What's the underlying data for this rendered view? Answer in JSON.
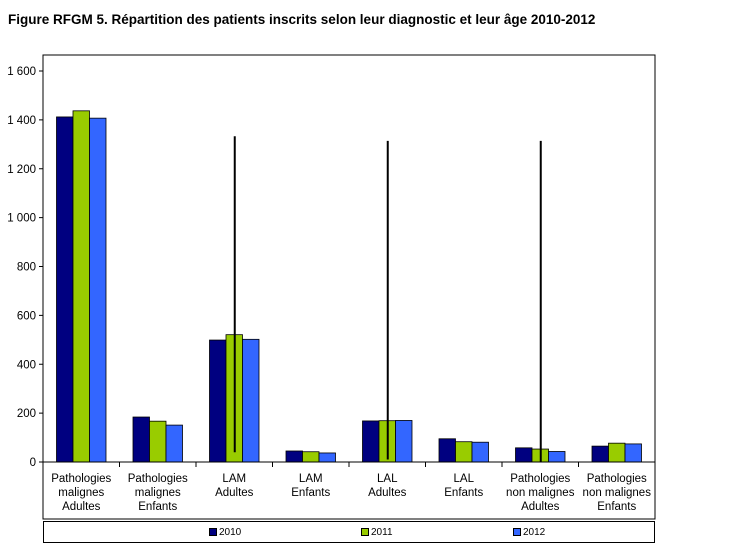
{
  "title": "Figure RFGM 5. Répartition des patients inscrits selon leur diagnostic et leur âge 2010-2012",
  "chart_data": {
    "type": "bar",
    "categories": [
      [
        "Pathologies",
        "malignes",
        "Adultes"
      ],
      [
        "Pathologies",
        "malignes",
        "Enfants"
      ],
      [
        "LAM",
        "Adultes"
      ],
      [
        "LAM",
        "Enfants"
      ],
      [
        "LAL",
        "Adultes"
      ],
      [
        "LAL",
        "Enfants"
      ],
      [
        "Pathologies",
        "non malignes",
        "Adultes"
      ],
      [
        "Pathologies",
        "non malignes",
        "Enfants"
      ]
    ],
    "series": [
      {
        "name": "2010",
        "color": "#000080",
        "values": [
          1412,
          184,
          499,
          45,
          168,
          95,
          58,
          65
        ]
      },
      {
        "name": "2011",
        "color": "#99CC00",
        "values": [
          1437,
          167,
          521,
          42,
          169,
          83,
          53,
          77
        ]
      },
      {
        "name": "2012",
        "color": "#3366FF",
        "values": [
          1407,
          151,
          502,
          37,
          170,
          81,
          43,
          74
        ]
      }
    ],
    "ylim": [
      0,
      1600
    ],
    "yticks": [
      0,
      200,
      400,
      600,
      800,
      1000,
      1200,
      1400,
      1600
    ],
    "ytick_labels": [
      "0",
      "200",
      "400",
      "600",
      "800",
      "1 000",
      "1 200",
      "1 400",
      "1 600"
    ],
    "error_bars": [
      {
        "category_index": 2,
        "low": 40,
        "high": 1333
      },
      {
        "category_index": 4,
        "low": 10,
        "high": 1314
      },
      {
        "category_index": 6,
        "low": 0,
        "high": 1314
      }
    ],
    "grid": false,
    "legend_position": "bottom"
  }
}
